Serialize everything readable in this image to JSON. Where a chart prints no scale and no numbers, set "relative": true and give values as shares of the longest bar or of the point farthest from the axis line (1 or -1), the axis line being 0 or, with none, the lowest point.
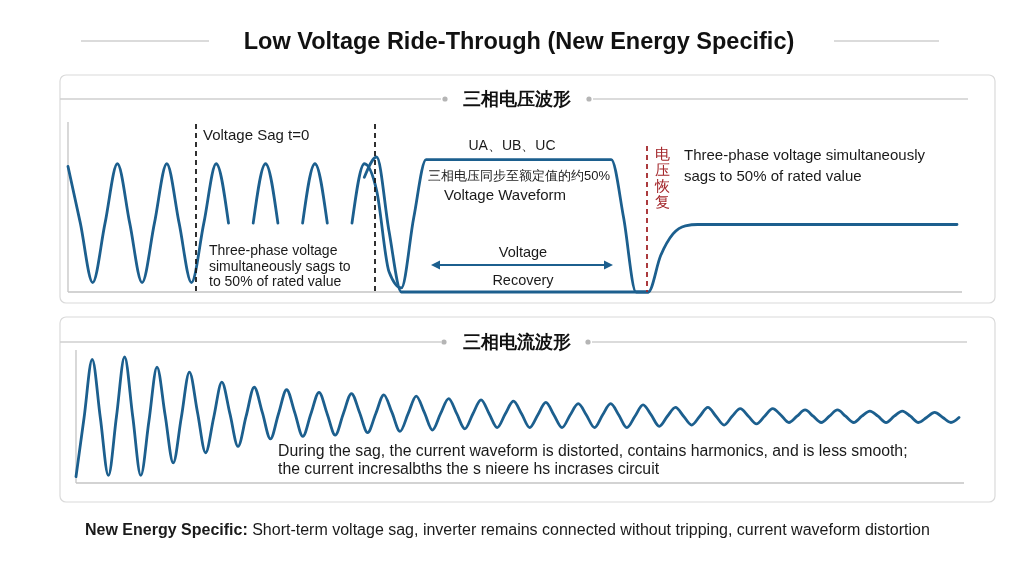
{
  "chart_data": [
    {
      "type": "line",
      "title": "Low Voltage Ride-Through (New Energy Specific)",
      "subtitle": "三相电压波形",
      "relative": true,
      "categories": [
        null,
        null,
        null,
        null,
        null,
        null,
        null,
        null,
        null,
        null,
        null,
        null,
        null,
        null,
        null,
        null,
        null,
        null,
        null,
        null,
        null,
        null,
        null,
        null,
        null,
        null,
        null,
        null,
        null,
        null,
        null,
        null,
        null,
        null,
        null,
        null,
        null,
        null,
        null,
        null,
        null,
        null,
        null,
        null,
        null,
        null,
        null,
        null,
        null,
        null,
        null,
        null,
        null,
        null,
        null,
        null,
        null,
        null,
        null,
        null,
        null,
        null,
        null,
        null,
        null,
        null,
        null,
        null,
        null,
        null,
        null,
        null,
        null
      ],
      "series": [
        {
          "color": "#1c5f8e",
          "values": [
            0.93,
            0.51,
            0.07,
            0.51,
            0.95,
            0.51,
            0.07,
            0.51,
            0.95,
            0.51,
            0.07,
            0.51,
            0.95,
            0.51,
            null,
            null,
            null,
            null,
            null,
            null,
            null,
            null,
            null,
            null,
            null,
            null,
            null,
            null,
            null,
            null,
            null,
            null,
            null,
            null,
            null,
            null,
            null,
            null,
            null,
            null,
            null,
            null,
            null,
            null,
            null,
            null,
            null,
            null,
            null,
            null,
            null,
            null,
            null,
            null,
            null,
            null,
            null,
            null,
            null,
            null,
            null,
            null,
            null,
            null,
            null,
            null,
            null,
            null,
            null,
            null,
            null,
            null,
            null
          ]
        },
        {
          "color": "#1c5f8e",
          "values": [
            null,
            null,
            null,
            null,
            null,
            null,
            null,
            null,
            null,
            null,
            null,
            null,
            null,
            null,
            null,
            0.51,
            0.95,
            0.51,
            null,
            null,
            null,
            null,
            null,
            null,
            null,
            null,
            null,
            null,
            null,
            null,
            null,
            null,
            null,
            null,
            null,
            null,
            null,
            null,
            null,
            null,
            null,
            null,
            null,
            null,
            null,
            null,
            null,
            null,
            null,
            null,
            null,
            null,
            null,
            null,
            null,
            null,
            null,
            null,
            null,
            null,
            null,
            null,
            null,
            null,
            null,
            null,
            null,
            null,
            null,
            null,
            null,
            null,
            null
          ]
        },
        {
          "color": "#1c5f8e",
          "values": [
            null,
            null,
            null,
            null,
            null,
            null,
            null,
            null,
            null,
            null,
            null,
            null,
            null,
            null,
            null,
            null,
            null,
            null,
            null,
            0.51,
            0.95,
            0.51,
            null,
            null,
            null,
            null,
            null,
            null,
            null,
            null,
            null,
            null,
            null,
            null,
            null,
            null,
            null,
            null,
            null,
            null,
            null,
            null,
            null,
            null,
            null,
            null,
            null,
            null,
            null,
            null,
            null,
            null,
            null,
            null,
            null,
            null,
            null,
            null,
            null,
            null,
            null,
            null,
            null,
            null,
            null,
            null,
            null,
            null,
            null,
            null,
            null,
            null,
            null
          ]
        },
        {
          "color": "#1c5f8e",
          "values": [
            null,
            null,
            null,
            null,
            null,
            null,
            null,
            null,
            null,
            null,
            null,
            null,
            null,
            null,
            null,
            null,
            null,
            null,
            null,
            null,
            null,
            null,
            null,
            0.51,
            0.95,
            0.75,
            0.15,
            0.03,
            0.55,
            0.98,
            0.98,
            0.98,
            0.98,
            0.98,
            0.98,
            0.98,
            0.98,
            0.98,
            0.98,
            0.98,
            0.98,
            0.98,
            0.98,
            0.98,
            0.98,
            0.55,
            0,
            0,
            0.27,
            0.43,
            0.49,
            0.5,
            0.5,
            0.5,
            0.5,
            0.5,
            0.5,
            0.5,
            0.5,
            0.5,
            0.5,
            0.5,
            0.5,
            0.5,
            0.5,
            0.5,
            0.5,
            0.5,
            0.5,
            0.5,
            0.5,
            0.5,
            0.5
          ]
        },
        {
          "color": "#1c5f8e",
          "values": [
            null,
            null,
            null,
            null,
            null,
            null,
            null,
            null,
            null,
            null,
            null,
            null,
            null,
            null,
            null,
            null,
            null,
            null,
            null,
            null,
            null,
            null,
            null,
            null,
            0.85,
            1,
            0.45,
            0,
            0,
            0,
            0,
            0,
            0,
            0,
            0,
            0,
            0,
            0,
            0,
            0,
            0,
            0,
            0,
            0,
            0,
            0,
            0,
            0,
            null,
            null,
            null,
            null,
            null,
            null,
            null,
            null,
            null,
            null,
            null,
            null,
            null,
            null,
            null,
            null,
            null,
            null,
            null,
            null,
            null,
            null,
            null,
            null,
            null
          ]
        }
      ],
      "ref_lines": [
        {
          "axis": "x",
          "label": "Voltage Sag t=0",
          "color": "#1a1a1a",
          "line_style": "dashed"
        },
        {
          "axis": "x",
          "color": "#1a1a1a",
          "line_style": "dashed"
        },
        {
          "axis": "x",
          "label": "电压恢复",
          "color": "#a3262a",
          "line_style": "dashed"
        }
      ],
      "annotations": [
        "Three-phase voltage\nsimultaneously sags to\nto 50% of rated value",
        "UA、UB、UC",
        "三相电压同步至额定值的约50%",
        "Voltage Waveform",
        "Voltage",
        "Recovery",
        "Three-phase voltage simultaneously\nsags to 50% of rated value"
      ]
    },
    {
      "type": "line",
      "title": "三相电流波形",
      "relative": true,
      "categories": [
        null,
        null,
        null,
        null,
        null,
        null,
        null,
        null,
        null,
        null,
        null,
        null,
        null,
        null,
        null,
        null,
        null,
        null,
        null,
        null,
        null,
        null,
        null,
        null,
        null,
        null,
        null,
        null,
        null,
        null,
        null,
        null,
        null,
        null,
        null,
        null,
        null,
        null,
        null,
        null,
        null,
        null,
        null,
        null,
        null,
        null,
        null,
        null,
        null,
        null,
        null,
        null,
        null,
        null,
        null,
        null,
        null,
        null,
        null,
        null,
        null,
        null,
        null,
        null,
        null,
        null,
        null,
        null,
        null,
        null,
        null,
        null,
        null,
        null,
        null,
        null,
        null,
        null,
        null,
        null,
        null,
        null,
        null,
        null,
        null,
        null,
        null,
        null,
        null,
        null,
        null,
        null,
        null,
        null,
        null,
        null,
        null,
        null,
        null,
        null,
        null,
        null,
        null,
        null,
        null,
        null,
        null,
        null,
        null,
        null
      ],
      "color": "#1c5f8e",
      "values": [
        0.05,
        0.52,
        0.98,
        0.52,
        0.06,
        0.53,
        1,
        0.53,
        0.06,
        0.49,
        0.92,
        0.54,
        0.16,
        0.52,
        0.88,
        0.56,
        0.24,
        0.52,
        0.8,
        0.55,
        0.29,
        0.53,
        0.76,
        0.56,
        0.35,
        0.55,
        0.74,
        0.56,
        0.37,
        0.55,
        0.72,
        0.55,
        0.38,
        0.55,
        0.71,
        0.56,
        0.4,
        0.55,
        0.7,
        0.56,
        0.41,
        0.55,
        0.69,
        0.56,
        0.42,
        0.55,
        0.67,
        0.55,
        0.43,
        0.55,
        0.66,
        0.55,
        0.44,
        0.55,
        0.65,
        0.55,
        0.44,
        0.54,
        0.64,
        0.54,
        0.44,
        0.54,
        0.63,
        0.54,
        0.44,
        0.54,
        0.63,
        0.54,
        0.44,
        0.53,
        0.62,
        0.54,
        0.45,
        0.53,
        0.6,
        0.53,
        0.46,
        0.53,
        0.6,
        0.53,
        0.46,
        0.53,
        0.59,
        0.53,
        0.47,
        0.53,
        0.59,
        0.54,
        0.48,
        0.53,
        0.58,
        0.53,
        0.48,
        0.53,
        0.58,
        0.53,
        0.48,
        0.53,
        0.57,
        0.53,
        0.48,
        0.53,
        0.57,
        0.53,
        0.48,
        0.52,
        0.56,
        0.52,
        0.48,
        0.52
      ],
      "annotations": [
        "During the sag, the current waveform is distorted, contains harmonics, and is less smooth;\nthe current incresalbths the s nieere hs incrases circuit",
        "New Energy Specific: Short-term voltage sag, inverter remains connected without tripping, current waveform distortion"
      ]
    }
  ]
}
